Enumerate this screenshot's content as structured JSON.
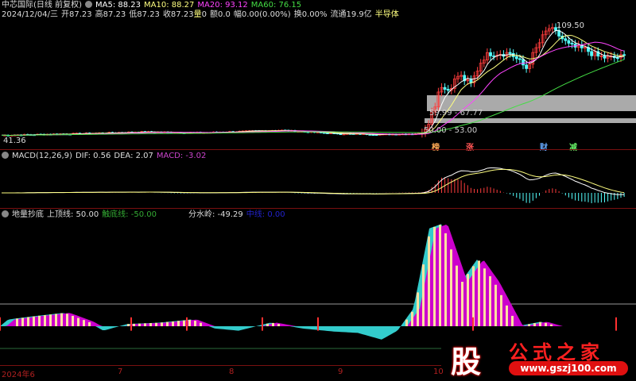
{
  "header": {
    "title": "中芯国际(日线 前复权)",
    "ma5": "MA5: 88.23",
    "ma10": "MA10: 88.27",
    "ma20": "MA20: 93.12",
    "ma60": "MA60: 76.15",
    "date": "2024/12/04/三",
    "open": "开87.23",
    "high": "高87.23",
    "low": "低87.23",
    "close": "收87.23",
    "vol_label": "量",
    "vol": "0",
    "amount": "额0.0",
    "change": "幅0.00(0.00%)",
    "turnover": "换0.00%",
    "float": "流通19.9亿",
    "sector": "半导体"
  },
  "price": {
    "max_label": "109.50",
    "min_label": "41.36",
    "zone1": "59.99 - 67.77",
    "zone2": "50.00 - 53.00",
    "tags": [
      "榜",
      "涨",
      "财",
      "减"
    ]
  },
  "macd": {
    "title": "MACD(12,26,9)",
    "dif": "DIF: 0.56",
    "dea": "DEA: 2.07",
    "macd": "MACD: -3.02"
  },
  "indicator": {
    "title": "地量抄底",
    "upper": "上顶线: 50.00",
    "lower": "触底线: -50.00",
    "divide": "分水岭: -49.29",
    "mid": "中线: 0.00"
  },
  "axis": {
    "labels": [
      "2024年6",
      "7",
      "8",
      "9",
      "10"
    ]
  },
  "watermark": {
    "logo": "股",
    "name": "公式之家",
    "url": "www.gszj100.com"
  },
  "colors": {
    "up": "#ff3c3c",
    "down": "#54ffff",
    "ma5": "#ffffff",
    "ma10": "#ffff80",
    "ma20": "#ff44ff",
    "ma60": "#44dd44",
    "area_pos": "#cc00cc",
    "area_neg": "#33cccc"
  }
}
